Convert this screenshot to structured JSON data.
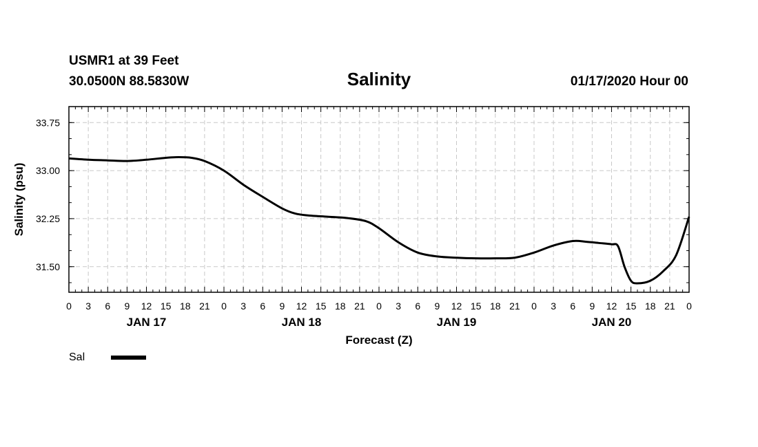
{
  "header": {
    "station": "USMR1 at 39 Feet",
    "coords": "30.0500N 88.5830W",
    "datetime": "01/17/2020 Hour 00"
  },
  "chart_data": {
    "type": "line",
    "title": "Salinity",
    "xlabel": "Forecast (Z)",
    "ylabel": "Salinity (psu)",
    "x_unit": "hours from 01/17/2020 00Z",
    "xlim": [
      0,
      96
    ],
    "ylim": [
      31.1,
      34.0
    ],
    "yticks": [
      31.5,
      32.25,
      33.0,
      33.75
    ],
    "ytick_labels": [
      "31.50",
      "32.25",
      "33.00",
      "33.75"
    ],
    "xticks": [
      0,
      3,
      6,
      9,
      12,
      15,
      18,
      21,
      24,
      27,
      30,
      33,
      36,
      39,
      42,
      45,
      48,
      51,
      54,
      57,
      60,
      63,
      66,
      69,
      72,
      75,
      78,
      81,
      84,
      87,
      90,
      93,
      96
    ],
    "xtick_labels": [
      "0",
      "3",
      "6",
      "9",
      "12",
      "15",
      "18",
      "21",
      "0",
      "3",
      "6",
      "9",
      "12",
      "15",
      "18",
      "21",
      "0",
      "3",
      "6",
      "9",
      "12",
      "15",
      "18",
      "21",
      "0",
      "3",
      "6",
      "9",
      "12",
      "15",
      "18",
      "21",
      "0"
    ],
    "day_labels": [
      {
        "x": 12,
        "label": "JAN 17"
      },
      {
        "x": 36,
        "label": "JAN 18"
      },
      {
        "x": 60,
        "label": "JAN 19"
      },
      {
        "x": 84,
        "label": "JAN 20"
      }
    ],
    "grid": true,
    "series": [
      {
        "name": "Sal",
        "color": "#000000",
        "x": [
          0,
          3,
          6,
          9,
          12,
          15,
          17,
          19,
          21,
          24,
          27,
          30,
          33,
          35,
          37,
          40,
          43,
          46,
          48,
          51,
          54,
          57,
          60,
          63,
          66,
          69,
          72,
          75,
          78,
          80,
          82,
          84,
          85,
          86,
          87,
          88,
          90,
          92,
          94,
          96
        ],
        "y": [
          33.19,
          33.17,
          33.16,
          33.15,
          33.17,
          33.2,
          33.21,
          33.2,
          33.15,
          33.0,
          32.78,
          32.59,
          32.41,
          32.33,
          32.3,
          32.28,
          32.26,
          32.21,
          32.1,
          31.88,
          31.72,
          31.66,
          31.64,
          31.63,
          31.63,
          31.64,
          31.72,
          31.83,
          31.9,
          31.89,
          31.87,
          31.85,
          31.82,
          31.5,
          31.28,
          31.24,
          31.28,
          31.43,
          31.68,
          32.28
        ]
      }
    ],
    "legend": {
      "label": "Sal",
      "placement": "bottom-left"
    }
  }
}
